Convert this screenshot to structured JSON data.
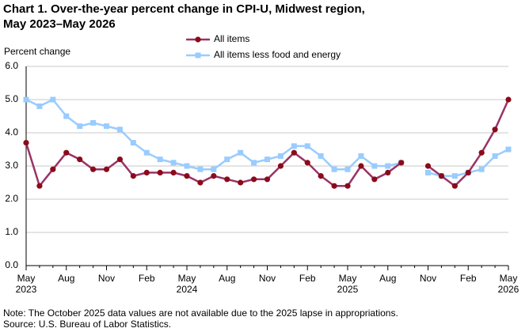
{
  "chart_data": {
    "type": "line",
    "title_lines": [
      "Chart 1. Over-the-year percent change in CPI-U, Midwest region,",
      "May 2023–May 2026"
    ],
    "y_label": "Percent change",
    "categories": [
      "May",
      null,
      null,
      "Aug",
      null,
      null,
      "Nov",
      null,
      null,
      "Feb",
      null,
      null,
      "May",
      null,
      null,
      "Aug",
      null,
      null,
      "Nov",
      null,
      null,
      "Feb",
      null,
      null,
      "May",
      null,
      null,
      "Aug",
      null,
      null,
      "Nov",
      null,
      null,
      "Feb",
      null,
      null,
      "May"
    ],
    "category_years": [
      "2023",
      null,
      null,
      null,
      null,
      null,
      null,
      null,
      null,
      null,
      null,
      null,
      "2024",
      null,
      null,
      null,
      null,
      null,
      null,
      null,
      null,
      null,
      null,
      null,
      "2025",
      null,
      null,
      null,
      null,
      null,
      null,
      null,
      null,
      null,
      null,
      null,
      "2026"
    ],
    "series": [
      {
        "name": "All items",
        "color": "#993366",
        "marker_color": "#8b0a1a",
        "marker": "circle",
        "values": [
          3.7,
          2.4,
          2.9,
          3.4,
          3.2,
          2.9,
          2.9,
          3.2,
          2.7,
          2.8,
          2.8,
          2.8,
          2.7,
          2.5,
          2.7,
          2.6,
          2.5,
          2.6,
          2.6,
          3.0,
          3.4,
          3.1,
          2.7,
          2.4,
          2.4,
          3.0,
          2.6,
          2.8,
          3.1,
          null,
          3.0,
          2.7,
          2.4,
          2.8,
          3.4,
          4.1,
          5.0
        ]
      },
      {
        "name": "All items less food and energy",
        "color": "#99ccff",
        "marker_color": "#99ccff",
        "marker": "square",
        "values": [
          5.0,
          4.8,
          5.0,
          4.5,
          4.2,
          4.3,
          4.2,
          4.1,
          3.7,
          3.4,
          3.2,
          3.1,
          3.0,
          2.9,
          2.9,
          3.2,
          3.4,
          3.1,
          3.2,
          3.3,
          3.6,
          3.6,
          3.3,
          2.9,
          2.9,
          3.3,
          3.0,
          3.0,
          3.1,
          null,
          2.8,
          2.7,
          2.7,
          2.8,
          2.9,
          3.3,
          3.5
        ]
      }
    ],
    "ylim": [
      0,
      6
    ],
    "yticks": [
      {
        "value": 0,
        "label": "0.0"
      },
      {
        "value": 1,
        "label": "1.0"
      },
      {
        "value": 2,
        "label": "2.0"
      },
      {
        "value": 3,
        "label": "3.0"
      },
      {
        "value": 4,
        "label": "4.0"
      },
      {
        "value": 5,
        "label": "5.0"
      },
      {
        "value": 6,
        "label": "6.0"
      }
    ],
    "grid": true,
    "notes": [
      "Note: The October 2025 data values  are not available  due to the 2025 lapse in appropriations.",
      "Source: U.S. Bureau of Labor Statistics."
    ]
  }
}
